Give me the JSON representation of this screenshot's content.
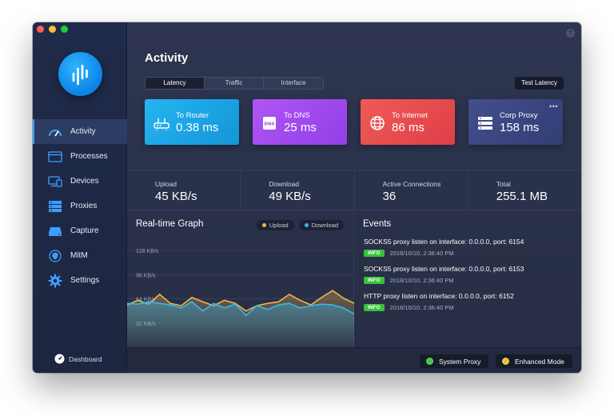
{
  "sidebar": {
    "items": [
      {
        "label": "Activity",
        "icon": "gauge-icon",
        "active": true
      },
      {
        "label": "Processes",
        "icon": "window-icon",
        "active": false
      },
      {
        "label": "Devices",
        "icon": "devices-icon",
        "active": false
      },
      {
        "label": "Proxies",
        "icon": "server-icon",
        "active": false
      },
      {
        "label": "Capture",
        "icon": "drive-icon",
        "active": false
      },
      {
        "label": "MitM",
        "icon": "shield-icon",
        "active": false
      },
      {
        "label": "Settings",
        "icon": "gear-icon",
        "active": false
      }
    ],
    "dashboard_label": "Dashboard"
  },
  "header": {
    "title": "Activity",
    "tabs": [
      {
        "label": "Latency",
        "active": true
      },
      {
        "label": "Traffic",
        "active": false
      },
      {
        "label": "Interface",
        "active": false
      }
    ],
    "test_latency_label": "Test Latency"
  },
  "cards": [
    {
      "label": "To Router",
      "value": "0.38 ms",
      "icon": "router-icon",
      "color": "#1aa6e6"
    },
    {
      "label": "To DNS",
      "value": "25 ms",
      "icon": "dns-icon",
      "color": "#a249f0"
    },
    {
      "label": "To Internet",
      "value": "86 ms",
      "icon": "globe-icon",
      "color": "#e94a4e"
    },
    {
      "label": "Corp Proxy",
      "value": "158 ms",
      "icon": "server-icon",
      "color": "#3a4783"
    }
  ],
  "stats": [
    {
      "label": "Upload",
      "value": "45 KB/s"
    },
    {
      "label": "Download",
      "value": "49 KB/s"
    },
    {
      "label": "Active Connections",
      "value": "36"
    },
    {
      "label": "Total",
      "value": "255.1 MB"
    }
  ],
  "graph": {
    "title": "Real-time Graph",
    "legend": [
      {
        "label": "Upload",
        "color": "#f0b54a"
      },
      {
        "label": "Download",
        "color": "#35b8f0"
      }
    ]
  },
  "chart_data": {
    "type": "area",
    "y_ticks": [
      "128 KB/s",
      "96 KB/s",
      "64 KB/s",
      "32 KB/s"
    ],
    "ylim": [
      0,
      144
    ],
    "series": [
      {
        "name": "Upload",
        "color": "#f0b54a",
        "values": [
          56,
          62,
          57,
          70,
          58,
          55,
          66,
          60,
          55,
          62,
          58,
          48,
          55,
          58,
          60,
          70,
          62,
          56,
          66,
          75,
          65,
          58
        ]
      },
      {
        "name": "Download",
        "color": "#35b8f0",
        "values": [
          58,
          57,
          60,
          58,
          56,
          52,
          60,
          48,
          58,
          52,
          57,
          42,
          55,
          50,
          56,
          58,
          52,
          55,
          57,
          56,
          52,
          44
        ]
      }
    ]
  },
  "events": {
    "title": "Events",
    "items": [
      {
        "message": "SOCKS5 proxy listen on interface: 0.0.0.0, port: 6154",
        "level": "INFO",
        "time": "2018/10/10, 2:36:40 PM"
      },
      {
        "message": "SOCKS5 proxy listen on interface: 0.0.0.0, port: 6153",
        "level": "INFO",
        "time": "2018/10/10, 2:36:40 PM"
      },
      {
        "message": "HTTP proxy listen on interface: 0.0.0.0, port: 6152",
        "level": "INFO",
        "time": "2018/10/10, 2:36:40 PM"
      }
    ]
  },
  "bottom": {
    "system_proxy_label": "System Proxy",
    "system_proxy_color": "#3ec43c",
    "enhanced_mode_label": "Enhanced Mode",
    "enhanced_mode_color": "#e8c22a"
  }
}
